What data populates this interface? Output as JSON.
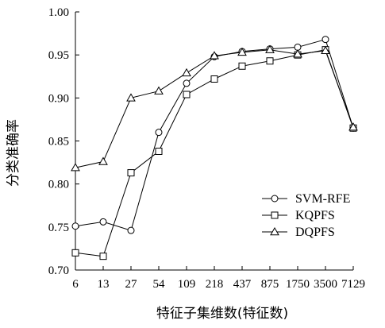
{
  "chart_data": {
    "type": "line",
    "xlabel": "特征子集维数(特征数)",
    "ylabel": "分类准确率",
    "categories": [
      "6",
      "13",
      "27",
      "54",
      "109",
      "218",
      "437",
      "875",
      "1750",
      "3500",
      "7129"
    ],
    "ylim": [
      0.7,
      1.0
    ],
    "yticks": [
      "0.70",
      "0.75",
      "0.80",
      "0.85",
      "0.90",
      "0.95",
      "1.00"
    ],
    "grid": false,
    "legend_position": "bottom-right",
    "series": [
      {
        "name": "SVM-RFE",
        "marker": "circle",
        "values": [
          0.751,
          0.756,
          0.746,
          0.86,
          0.917,
          0.948,
          0.954,
          0.957,
          0.959,
          0.968,
          0.865
        ]
      },
      {
        "name": "KQPFS",
        "marker": "square",
        "values": [
          0.72,
          0.716,
          0.813,
          0.838,
          0.904,
          0.922,
          0.937,
          0.943,
          0.95,
          0.956,
          0.865
        ]
      },
      {
        "name": "DQPFS",
        "marker": "triangle",
        "values": [
          0.819,
          0.826,
          0.9,
          0.908,
          0.929,
          0.949,
          0.953,
          0.956,
          0.951,
          0.955,
          0.866
        ]
      }
    ]
  }
}
